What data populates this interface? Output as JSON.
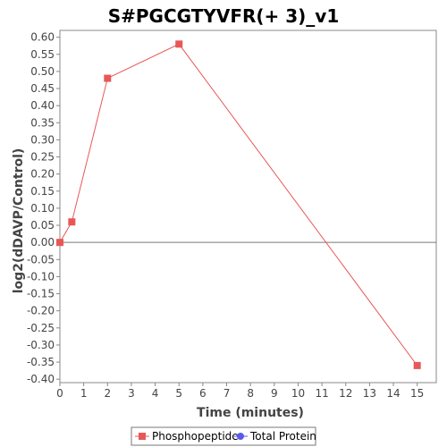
{
  "chart_data": {
    "type": "line",
    "title": "S#PGCGTYVFR(+ 3)_v1",
    "xlabel": "Time (minutes)",
    "ylabel": "log2(dDAVP/Control)",
    "xlim": [
      0,
      15.8
    ],
    "ylim": [
      -0.41,
      0.62
    ],
    "xticks": [
      0,
      1,
      2,
      3,
      4,
      5,
      6,
      7,
      8,
      9,
      10,
      11,
      12,
      13,
      14,
      15
    ],
    "yticks": [
      0.6,
      0.55,
      0.5,
      0.45,
      0.4,
      0.35,
      0.3,
      0.25,
      0.2,
      0.15,
      0.1,
      0.05,
      0.0,
      -0.05,
      -0.1,
      -0.15,
      -0.2,
      -0.25,
      -0.3,
      -0.35,
      -0.4
    ],
    "ytick_labels": [
      "0.60",
      "0.55",
      "0.50",
      "0.45",
      "0.40",
      "0.35",
      "0.30",
      "0.25",
      "0.20",
      "0.15",
      "0.10",
      "0.05",
      "0.00",
      "-0.05",
      "-0.10",
      "-0.15",
      "-0.20",
      "-0.25",
      "-0.30",
      "-0.35",
      "-0.40"
    ],
    "zero_line": true,
    "grid": false,
    "legend_position": "bottom",
    "series": [
      {
        "name": "Phosphopeptide",
        "color": "#e85757",
        "marker": "square",
        "x": [
          0,
          0.5,
          2,
          5,
          15
        ],
        "y": [
          0.0,
          0.06,
          0.48,
          0.58,
          -0.36
        ]
      },
      {
        "name": "Total Protein",
        "color": "#5a5ae8",
        "marker": "circle",
        "x": [],
        "y": []
      }
    ]
  }
}
